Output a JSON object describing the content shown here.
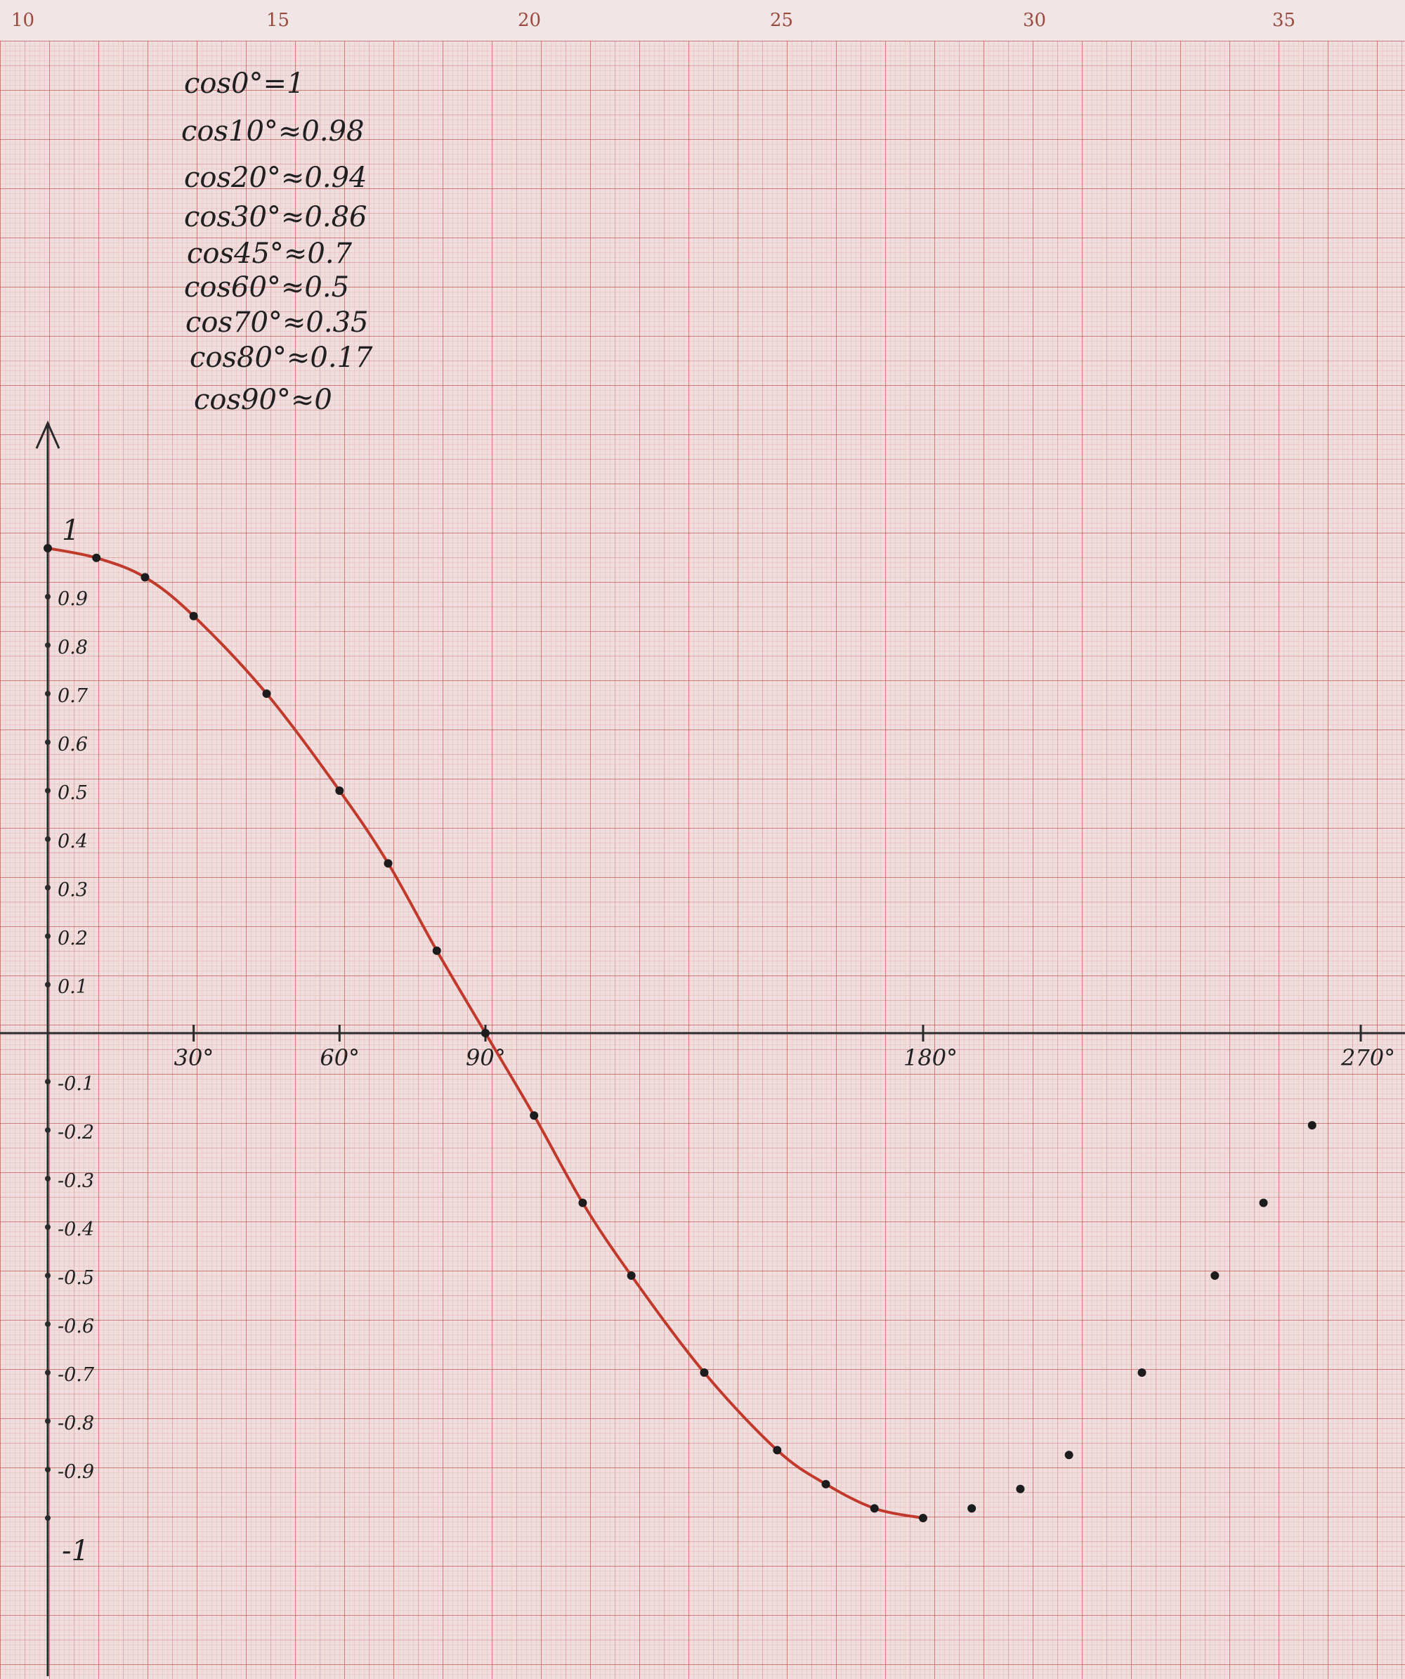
{
  "ruler": {
    "marks": [
      "10",
      "15",
      "20",
      "25",
      "30",
      "35"
    ]
  },
  "notes": [
    "cos0°=1",
    "cos10°≈0.98",
    "cos20°≈0.94",
    "cos30°≈0.86",
    "cos45°≈0.7",
    "cos60°≈0.5",
    "cos70°≈0.35",
    "cos80°≈0.17",
    "cos90°≈0"
  ],
  "colors": {
    "paper": "#efdedd",
    "grid": "#c45454",
    "curve": "#c0392b",
    "ink": "#202020"
  },
  "chart_data": {
    "type": "line",
    "xlim": [
      0,
      270
    ],
    "ylim": [
      -1,
      1
    ],
    "x_tick_labels": [
      {
        "x": 30,
        "label": "30°"
      },
      {
        "x": 60,
        "label": "60°"
      },
      {
        "x": 90,
        "label": "90°"
      },
      {
        "x": 180,
        "label": "180°"
      },
      {
        "x": 270,
        "label": "270°"
      }
    ],
    "y_tick_labels": [
      {
        "y": 1,
        "label": "1"
      },
      {
        "y": 0.9,
        "label": "0.9"
      },
      {
        "y": 0.8,
        "label": "0.8"
      },
      {
        "y": 0.7,
        "label": "0.7"
      },
      {
        "y": 0.6,
        "label": "0.6"
      },
      {
        "y": 0.5,
        "label": "0.5"
      },
      {
        "y": 0.4,
        "label": "0.4"
      },
      {
        "y": 0.3,
        "label": "0.3"
      },
      {
        "y": 0.2,
        "label": "0.2"
      },
      {
        "y": 0.1,
        "label": "0.1"
      },
      {
        "y": -0.1,
        "label": "-0.1"
      },
      {
        "y": -0.2,
        "label": "-0.2"
      },
      {
        "y": -0.3,
        "label": "-0.3"
      },
      {
        "y": -0.4,
        "label": "-0.4"
      },
      {
        "y": -0.5,
        "label": "-0.5"
      },
      {
        "y": -0.6,
        "label": "-0.6"
      },
      {
        "y": -0.7,
        "label": "-0.7"
      },
      {
        "y": -0.8,
        "label": "-0.8"
      },
      {
        "y": -0.9,
        "label": "-0.9"
      },
      {
        "y": -1,
        "label": "-1"
      }
    ],
    "series": [
      {
        "points": [
          {
            "x": 0,
            "y": 1
          },
          {
            "x": 10,
            "y": 0.98
          },
          {
            "x": 20,
            "y": 0.94
          },
          {
            "x": 30,
            "y": 0.86
          },
          {
            "x": 45,
            "y": 0.7
          },
          {
            "x": 60,
            "y": 0.5
          },
          {
            "x": 70,
            "y": 0.35
          },
          {
            "x": 80,
            "y": 0.17
          },
          {
            "x": 90,
            "y": 0
          },
          {
            "x": 100,
            "y": -0.17
          },
          {
            "x": 110,
            "y": -0.35
          },
          {
            "x": 120,
            "y": -0.5
          },
          {
            "x": 135,
            "y": -0.7
          },
          {
            "x": 150,
            "y": -0.86
          },
          {
            "x": 160,
            "y": -0.93
          },
          {
            "x": 170,
            "y": -0.98
          },
          {
            "x": 180,
            "y": -1
          }
        ]
      },
      {
        "points": [
          {
            "x": 190,
            "y": -0.98
          },
          {
            "x": 200,
            "y": -0.94
          },
          {
            "x": 210,
            "y": -0.87
          },
          {
            "x": 225,
            "y": -0.7
          },
          {
            "x": 240,
            "y": -0.5
          },
          {
            "x": 250,
            "y": -0.35
          },
          {
            "x": 260,
            "y": -0.19
          }
        ]
      }
    ]
  }
}
